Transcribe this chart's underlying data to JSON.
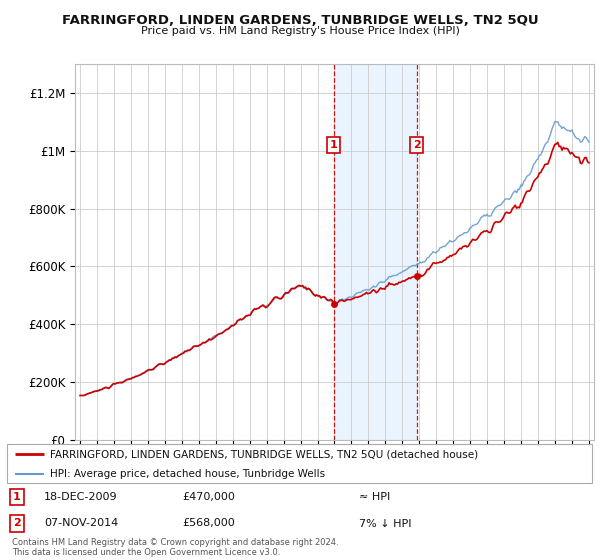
{
  "title": "FARRINGFORD, LINDEN GARDENS, TUNBRIDGE WELLS, TN2 5QU",
  "subtitle": "Price paid vs. HM Land Registry's House Price Index (HPI)",
  "legend_line1": "FARRINGFORD, LINDEN GARDENS, TUNBRIDGE WELLS, TN2 5QU (detached house)",
  "legend_line2": "HPI: Average price, detached house, Tunbridge Wells",
  "sale1_date": "18-DEC-2009",
  "sale1_price": "£470,000",
  "sale1_hpi": "≈ HPI",
  "sale2_date": "07-NOV-2014",
  "sale2_price": "£568,000",
  "sale2_hpi": "7% ↓ HPI",
  "footer": "Contains HM Land Registry data © Crown copyright and database right 2024.\nThis data is licensed under the Open Government Licence v3.0.",
  "property_color": "#cc0000",
  "hpi_color": "#6699cc",
  "background_color": "#ffffff",
  "plot_bg_color": "#ffffff",
  "grid_color": "#cccccc",
  "shade_color": "#ddeeff",
  "ylim_max": 1300000,
  "yticks": [
    0,
    200000,
    400000,
    600000,
    800000,
    1000000,
    1200000
  ],
  "ytick_labels": [
    "£0",
    "£200K",
    "£400K",
    "£600K",
    "£800K",
    "£1M",
    "£1.2M"
  ],
  "sale1_year": 2009.96,
  "sale2_year": 2014.85,
  "sale1_price_val": 470000,
  "sale2_price_val": 568000
}
